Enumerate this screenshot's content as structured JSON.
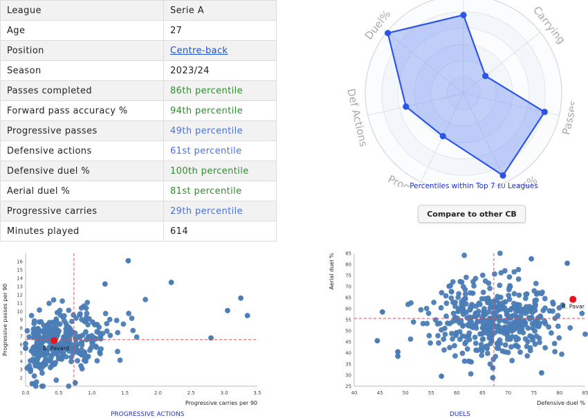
{
  "profile_table": [
    {
      "key": "League",
      "value": "Serie A",
      "style": "plain"
    },
    {
      "key": "Age",
      "value": "27",
      "style": "plain"
    },
    {
      "key": "Position",
      "value": "Centre-back",
      "style": "link"
    },
    {
      "key": "Season",
      "value": "2023/24",
      "style": "plain"
    },
    {
      "key": "Passes completed",
      "value": "86th percentile",
      "style": "green"
    },
    {
      "key": "Forward pass accuracy %",
      "value": "94th percentile",
      "style": "green"
    },
    {
      "key": "Progressive passes",
      "value": "49th percentile",
      "style": "blue"
    },
    {
      "key": "Defensive actions",
      "value": "61st percentile",
      "style": "blue"
    },
    {
      "key": "Defensive duel %",
      "value": "100th percentile",
      "style": "green"
    },
    {
      "key": "Aerial duel %",
      "value": "81st percentile",
      "style": "green"
    },
    {
      "key": "Progressive carries",
      "value": "29th percentile",
      "style": "blue"
    },
    {
      "key": "Minutes played",
      "value": "614",
      "style": "plain"
    }
  ],
  "radar_caption": {
    "prefix": "Percentiles within Top 7 ",
    "small": "EU",
    "suffix": " Leagues"
  },
  "compare_button": "Compare to other CB",
  "sections": {
    "left": "PROGRESSIVE ACTIONS",
    "right": "DUELS"
  },
  "colors": {
    "point": "#4a7cb5",
    "highlight": "#e8141b",
    "radar_fill": "#6f8ff0",
    "radar_line": "#2b55e8",
    "ref_line": "#e05050"
  },
  "chart_data": [
    {
      "type": "radar",
      "title": "",
      "range": [
        0,
        100
      ],
      "axes": [
        "Duel%",
        "Carrying",
        "Passes",
        "Fwd Pass%",
        "Prog Passes",
        "Def Actions"
      ],
      "values": [
        100,
        29,
        86,
        94,
        49,
        61
      ],
      "extra_axis_values": [
        81
      ],
      "note": "7-spoke radar; the top spoke (aerial duel, 81) label is not visible"
    },
    {
      "type": "scatter",
      "xlabel": "Progressive carries per 90",
      "ylabel": "Progressive passes per 90",
      "xlim": [
        0,
        3.5
      ],
      "ylim": [
        1,
        17
      ],
      "xticks": [
        "0.0",
        "0.5",
        "1.0",
        "1.5",
        "2.0",
        "2.5",
        "3.0",
        "3.5"
      ],
      "yticks": [
        "2",
        "3",
        "4",
        "5",
        "6",
        "7",
        "8",
        "9",
        "10",
        "11",
        "12",
        "13",
        "14",
        "15",
        "16"
      ],
      "reference_lines": {
        "x": 0.73,
        "y": 6.6
      },
      "highlight": {
        "label": "B. Pavard",
        "x": 0.43,
        "y": 6.5
      },
      "point_count": 360,
      "outliers": [
        [
          1.55,
          16.1
        ],
        [
          2.2,
          13.5
        ],
        [
          1.2,
          13.3
        ],
        [
          3.25,
          11.6
        ],
        [
          3.35,
          9.5
        ],
        [
          3.05,
          10.1
        ],
        [
          2.8,
          6.8
        ],
        [
          0.75,
          1.4
        ],
        [
          0.1,
          1.3
        ]
      ]
    },
    {
      "type": "scatter",
      "xlabel": "Defensive duel %",
      "ylabel": "Aerial duel %",
      "xlim": [
        40,
        85
      ],
      "ylim": [
        25,
        85
      ],
      "xticks": [
        "40",
        "45",
        "50",
        "55",
        "60",
        "65",
        "70",
        "75",
        "80",
        "85"
      ],
      "yticks": [
        "25",
        "30",
        "35",
        "40",
        "45",
        "50",
        "55",
        "60",
        "65",
        "70",
        "75",
        "80",
        "85"
      ],
      "reference_lines": {
        "x": 67.2,
        "y": 55.6
      },
      "highlight": {
        "label": "B. Pavar",
        "x": 82.6,
        "y": 64.2
      },
      "point_count": 430,
      "outliers": [
        [
          44.5,
          45.5
        ],
        [
          45.5,
          58.5
        ],
        [
          48.5,
          40.5
        ],
        [
          48.5,
          38.5
        ],
        [
          57,
          29.5
        ],
        [
          67,
          28.8
        ],
        [
          67,
          33.2
        ],
        [
          76.5,
          31
        ],
        [
          81.5,
          80.5
        ],
        [
          74.5,
          82.5
        ]
      ]
    }
  ]
}
